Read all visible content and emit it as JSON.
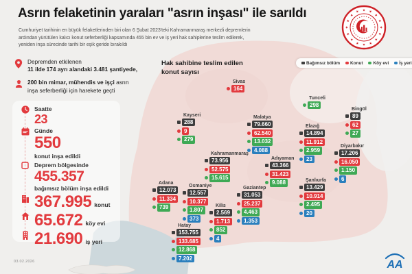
{
  "header": {
    "title": "Asrın felaketinin yaraları \"asrın inşası\" ile sarıldı",
    "subtitle": "Cumhuriyet tarihinin en büyük felaketlerinden biri olan 6 Şubat 2023'teki Kahramanmaraş merkezli depremlerin ardından yürütülen kalıcı konut seferberliği kapsamında 455 bin ev ve iş yeri hak sahiplerine teslim edilerek, yeniden inşa sürecinde tarihi bir eşik geride bırakıldı"
  },
  "facts": [
    {
      "line1": "Depremden etkilenen",
      "line2": "11 ilde 174 ayrı alandaki 3.481 şantiyede,"
    },
    {
      "bold": "200 bin mimar, mühendis ve işçi",
      "rest": " asrın inşa seferberliği için harekete geçti"
    }
  ],
  "stats_card": {
    "saatte_label": "Saatte",
    "saatte_value": "23",
    "gunde_label": "Günde",
    "gunde_value": "550",
    "gunde_suffix": "konut inşa edildi",
    "bolge_label": "Deprem bölgesinde",
    "bolge_value": "455.357",
    "bolge_suffix": "bağımsız bölüm inşa edildi",
    "konut_value": "367.995",
    "konut_suffix": "konut",
    "koyevi_value": "65.672",
    "koyevi_suffix": "köy evi",
    "isyeri_value": "21.690",
    "isyeri_suffix": "iş yeri"
  },
  "map": {
    "title_line1": "Hak sahibine teslim edilen",
    "title_line2": "konut sayısı",
    "badge_colors": {
      "bagimsiz": "#3d3d3d",
      "konut": "#e23a3e",
      "koyevi": "#3fa955",
      "isyeri": "#2a7fbd"
    },
    "legend": [
      {
        "type": "bagimsiz",
        "label": "Bağımsız bölüm"
      },
      {
        "type": "konut",
        "label": "Konut"
      },
      {
        "type": "koyevi",
        "label": "Köy evi"
      },
      {
        "type": "isyeri",
        "label": "İş yeri"
      }
    ],
    "cities": [
      {
        "name": "Sivas",
        "badges": [
          {
            "type": "konut",
            "value": "164"
          }
        ]
      },
      {
        "name": "Tunceli",
        "badges": [
          {
            "type": "koyevi",
            "value": "298"
          }
        ]
      },
      {
        "name": "Kayseri",
        "badges": [
          {
            "type": "bagimsiz",
            "value": "288"
          },
          {
            "type": "konut",
            "value": "9"
          },
          {
            "type": "koyevi",
            "value": "279"
          }
        ]
      },
      {
        "name": "Bingöl",
        "badges": [
          {
            "type": "bagimsiz",
            "value": "89"
          },
          {
            "type": "konut",
            "value": "62"
          },
          {
            "type": "koyevi",
            "value": "27"
          }
        ]
      },
      {
        "name": "Malatya",
        "badges": [
          {
            "type": "bagimsiz",
            "value": "79.660"
          },
          {
            "type": "konut",
            "value": "62.540"
          },
          {
            "type": "koyevi",
            "value": "13.032"
          },
          {
            "type": "isyeri",
            "value": "4.088"
          }
        ]
      },
      {
        "name": "Elazığ",
        "badges": [
          {
            "type": "bagimsiz",
            "value": "14.894"
          },
          {
            "type": "konut",
            "value": "11.912"
          },
          {
            "type": "koyevi",
            "value": "2.959"
          },
          {
            "type": "isyeri",
            "value": "23"
          }
        ]
      },
      {
        "name": "Diyarbakır",
        "badges": [
          {
            "type": "bagimsiz",
            "value": "17.206"
          },
          {
            "type": "konut",
            "value": "16.050"
          },
          {
            "type": "koyevi",
            "value": "1.150"
          },
          {
            "type": "isyeri",
            "value": "6"
          }
        ]
      },
      {
        "name": "Kahramanmaraş",
        "badges": [
          {
            "type": "bagimsiz",
            "value": "73.956"
          },
          {
            "type": "konut",
            "value": "52.575"
          },
          {
            "type": "koyevi",
            "value": "15.615"
          }
        ]
      },
      {
        "name": "Adıyaman",
        "badges": [
          {
            "type": "bagimsiz",
            "value": "43.366"
          },
          {
            "type": "konut",
            "value": "31.423"
          },
          {
            "type": "koyevi",
            "value": "9.088"
          }
        ]
      },
      {
        "name": "Şanlıurfa",
        "badges": [
          {
            "type": "bagimsiz",
            "value": "13.429"
          },
          {
            "type": "konut",
            "value": "10.914"
          },
          {
            "type": "koyevi",
            "value": "2.495"
          },
          {
            "type": "isyeri",
            "value": "20"
          }
        ]
      },
      {
        "name": "Adana",
        "badges": [
          {
            "type": "bagimsiz",
            "value": "12.073"
          },
          {
            "type": "konut",
            "value": "11.334"
          },
          {
            "type": "koyevi",
            "value": "739"
          }
        ]
      },
      {
        "name": "Osmaniye",
        "badges": [
          {
            "type": "bagimsiz",
            "value": "12.557"
          },
          {
            "type": "konut",
            "value": "10.377"
          },
          {
            "type": "koyevi",
            "value": "1.807"
          },
          {
            "type": "isyeri",
            "value": "373"
          }
        ]
      },
      {
        "name": "Gaziantep",
        "badges": [
          {
            "type": "bagimsiz",
            "value": "31.053"
          },
          {
            "type": "konut",
            "value": "25.237"
          },
          {
            "type": "koyevi",
            "value": "4.463"
          },
          {
            "type": "isyeri",
            "value": "1.353"
          }
        ]
      },
      {
        "name": "Kilis",
        "badges": [
          {
            "type": "bagimsiz",
            "value": "2.569"
          },
          {
            "type": "konut",
            "value": "1.713"
          },
          {
            "type": "koyevi",
            "value": "852"
          },
          {
            "type": "isyeri",
            "value": "4"
          }
        ]
      },
      {
        "name": "Hatay",
        "badges": [
          {
            "type": "bagimsiz",
            "value": "153.755"
          },
          {
            "type": "konut",
            "value": "133.685"
          },
          {
            "type": "koyevi",
            "value": "12.868"
          },
          {
            "type": "isyeri",
            "value": "7.202"
          }
        ]
      }
    ]
  },
  "footer": {
    "date": "03.02.2026",
    "agency": "AA"
  }
}
